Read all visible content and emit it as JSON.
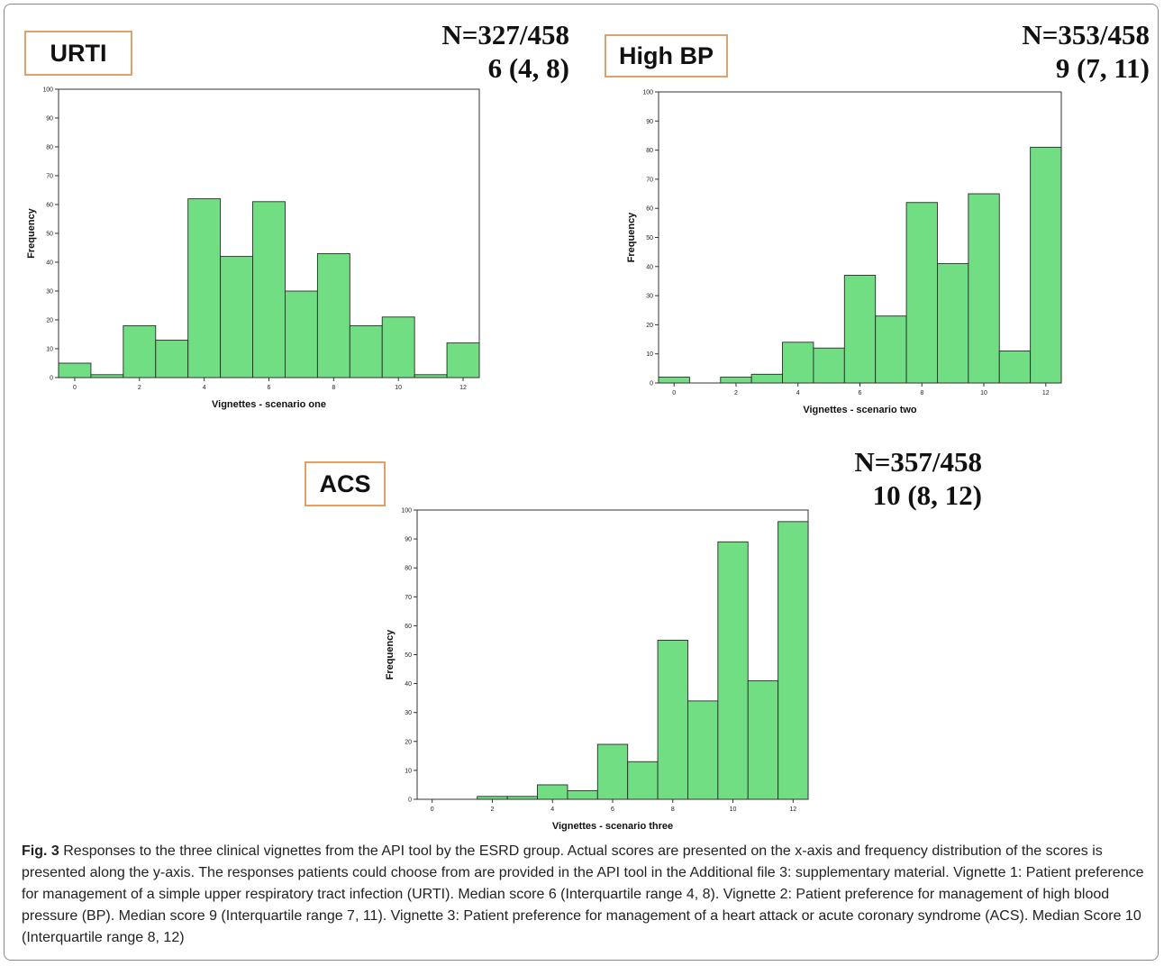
{
  "panels": [
    {
      "tag": "URTI",
      "n_text": "N=327/458",
      "median_text": "6 (4, 8)"
    },
    {
      "tag": "High BP",
      "n_text": "N=353/458",
      "median_text": "9 (7, 11)"
    },
    {
      "tag": "ACS",
      "n_text": "N=357/458",
      "median_text": "10 (8, 12)"
    }
  ],
  "caption": {
    "fig_label": "Fig. 3",
    "text": "Responses to the three clinical vignettes from the API tool by the ESRD group. Actual scores are presented on the x-axis and frequency distribution of the scores is presented along the y-axis. The responses patients could choose from are provided in the API tool in the Additional file 3: supplementary material. Vignette 1: Patient preference for management of a simple upper respiratory tract infection (URTI). Median score 6 (Interquartile range 4, 8). Vignette 2: Patient preference for management of high blood pressure (BP). Median score 9 (Interquartile range 7, 11). Vignette 3: Patient preference for management of a heart attack or acute coronary syndrome (ACS). Median Score 10 (Interquartile range 8, 12)"
  },
  "colors": {
    "bar_fill": "#72de84",
    "bar_stroke": "#2a2a2a",
    "tag_border": "#e0a06a"
  },
  "chart_data": [
    {
      "type": "bar",
      "xlabel": "Vignettes - scenario one",
      "ylabel": "Frequency",
      "xlim": [
        -0.5,
        12.5
      ],
      "ylim": [
        0,
        100
      ],
      "xticks": [
        0,
        2,
        4,
        6,
        8,
        10,
        12
      ],
      "yticks": [
        0,
        10,
        20,
        30,
        40,
        50,
        60,
        70,
        80,
        90,
        100
      ],
      "x": [
        0,
        1,
        2,
        3,
        4,
        5,
        6,
        7,
        8,
        9,
        10,
        11,
        12
      ],
      "values": [
        5,
        1,
        18,
        13,
        62,
        42,
        61,
        30,
        43,
        18,
        21,
        1,
        12
      ]
    },
    {
      "type": "bar",
      "xlabel": "Vignettes - scenario two",
      "ylabel": "Frequency",
      "xlim": [
        -0.5,
        12.5
      ],
      "ylim": [
        0,
        100
      ],
      "xticks": [
        0,
        2,
        4,
        6,
        8,
        10,
        12
      ],
      "yticks": [
        0,
        10,
        20,
        30,
        40,
        50,
        60,
        70,
        80,
        90,
        100
      ],
      "x": [
        0,
        1,
        2,
        3,
        4,
        5,
        6,
        7,
        8,
        9,
        10,
        11,
        12
      ],
      "values": [
        2,
        0,
        2,
        3,
        14,
        12,
        37,
        23,
        62,
        41,
        65,
        11,
        81
      ]
    },
    {
      "type": "bar",
      "xlabel": "Vignettes - scenario three",
      "ylabel": "Frequency",
      "xlim": [
        -0.5,
        12.5
      ],
      "ylim": [
        0,
        100
      ],
      "xticks": [
        0,
        2,
        4,
        6,
        8,
        10,
        12
      ],
      "yticks": [
        0,
        10,
        20,
        30,
        40,
        50,
        60,
        70,
        80,
        90,
        100
      ],
      "x": [
        0,
        1,
        2,
        3,
        4,
        5,
        6,
        7,
        8,
        9,
        10,
        11,
        12
      ],
      "values": [
        0,
        0,
        1,
        1,
        5,
        3,
        19,
        13,
        55,
        34,
        89,
        41,
        96
      ]
    }
  ]
}
